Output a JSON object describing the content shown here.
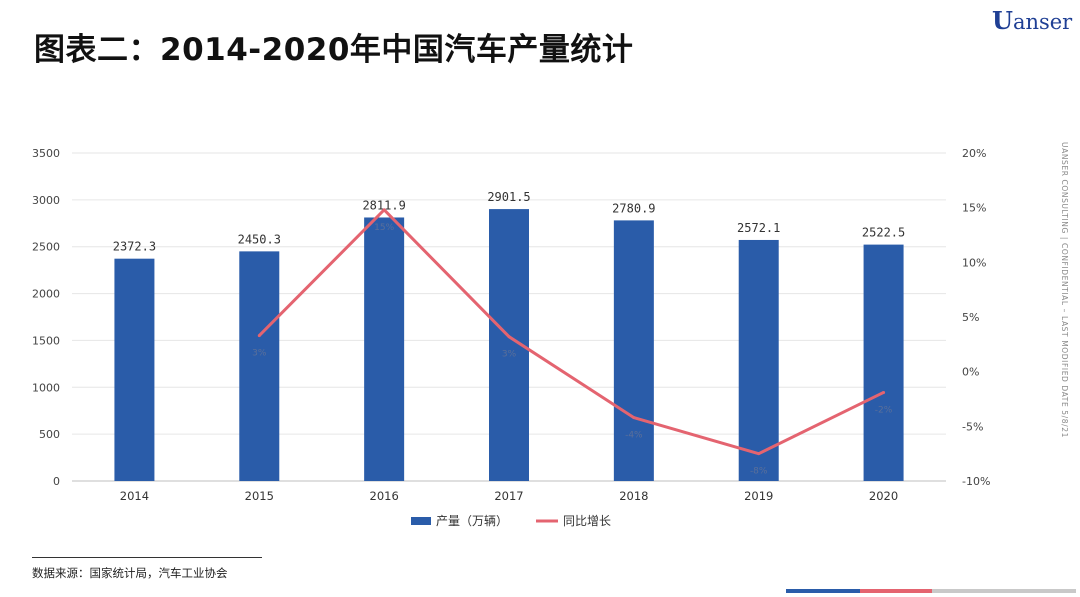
{
  "header": {
    "title": "图表二：2014-2020年中国汽车产量统计",
    "logo_u": "U",
    "logo_rest": "anser"
  },
  "sidebar_note": "UANSER CONSULTING  |  CONFIDENTIAL – LAST MODIFIED DATE 5/8/21",
  "source": "数据来源：国家统计局，汽车工业协会",
  "colors": {
    "bar": "#2a5ca9",
    "line": "#e46470",
    "footer": [
      "#2a5ca9",
      "#e46470",
      "#c9c9c9",
      "#c9c9c9"
    ]
  },
  "chart_data": {
    "type": "bar+line",
    "categories": [
      "2014",
      "2015",
      "2016",
      "2017",
      "2018",
      "2019",
      "2020"
    ],
    "series": [
      {
        "name": "产量（万辆）",
        "type": "bar",
        "axis": "left",
        "values": [
          2372.3,
          2450.3,
          2811.9,
          2901.5,
          2780.9,
          2572.1,
          2522.5
        ],
        "labels": [
          "2372.3",
          "2450.3",
          "2811.9",
          "2901.5",
          "2780.9",
          "2572.1",
          "2522.5"
        ]
      },
      {
        "name": "同比增长",
        "type": "line",
        "axis": "right",
        "x": [
          "2015",
          "2016",
          "2017",
          "2018",
          "2019",
          "2020"
        ],
        "values": [
          3.3,
          14.8,
          3.2,
          -4.2,
          -7.5,
          -1.9
        ],
        "labels": [
          "3%",
          "15%",
          "3%",
          "-4%",
          "-8%",
          "-2%"
        ]
      }
    ],
    "y_left": {
      "range": [
        0,
        3500
      ],
      "ticks": [
        "0",
        "500",
        "1000",
        "1500",
        "2000",
        "2500",
        "3000",
        "3500"
      ]
    },
    "y_right": {
      "range": [
        -10,
        20
      ],
      "ticks": [
        "-10%",
        "-5%",
        "0%",
        "5%",
        "10%",
        "15%",
        "20%"
      ]
    },
    "grid": true,
    "legend": "bottom"
  }
}
